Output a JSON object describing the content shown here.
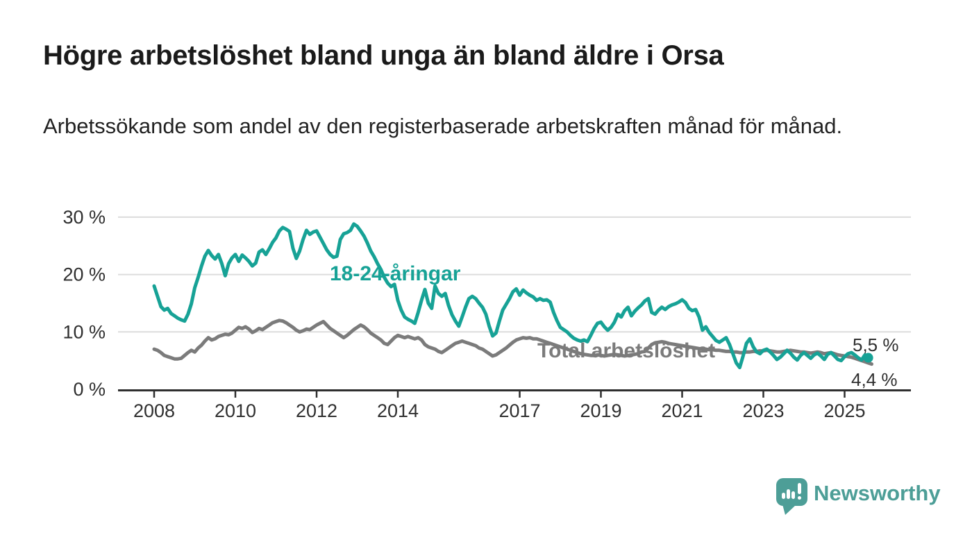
{
  "header": {
    "title": "Högre arbetslöshet bland unga än bland äldre i Orsa",
    "subtitle": "Arbetssökande som andel av den registerbaserade arbetskraften månad för månad."
  },
  "footer": {
    "brand": "Newsworthy",
    "brand_color": "#4d9e97"
  },
  "chart_data": {
    "type": "line",
    "title": "Högre arbetslöshet bland unga än bland äldre i Orsa",
    "subtitle": "Arbetssökande som andel av den registerbaserade arbetskraften månad för månad.",
    "unit": "%",
    "grid": "horizontal",
    "background": "#ffffff",
    "x_range": {
      "start": "2008-01",
      "end": "2025-09",
      "frequency": "monthly"
    },
    "ylim": [
      0,
      30
    ],
    "y_ticks": [
      {
        "value": 0,
        "label": "0 %"
      },
      {
        "value": 10,
        "label": "10 %"
      },
      {
        "value": 20,
        "label": "20 %"
      },
      {
        "value": 30,
        "label": "30 %"
      }
    ],
    "x_ticks": [
      {
        "value": 2008,
        "label": "2008"
      },
      {
        "value": 2010,
        "label": "2010"
      },
      {
        "value": 2012,
        "label": "2012"
      },
      {
        "value": 2014,
        "label": "2014"
      },
      {
        "value": 2017,
        "label": "2017"
      },
      {
        "value": 2019,
        "label": "2019"
      },
      {
        "value": 2021,
        "label": "2021"
      },
      {
        "value": 2023,
        "label": "2023"
      },
      {
        "value": 2025,
        "label": "2025"
      }
    ],
    "series": [
      {
        "name": "18-24-åringar",
        "color": "#17a296",
        "end_label": "5,5 %",
        "last_value": 5.5,
        "end_marker": true,
        "values": [
          18.0,
          16.2,
          14.4,
          13.8,
          14.1,
          13.2,
          12.8,
          12.4,
          12.1,
          11.9,
          13.1,
          14.9,
          17.7,
          19.5,
          21.5,
          23.2,
          24.2,
          23.3,
          22.7,
          23.5,
          21.9,
          19.8,
          21.9,
          22.9,
          23.5,
          22.3,
          23.4,
          22.9,
          22.3,
          21.5,
          22.0,
          23.9,
          24.3,
          23.5,
          24.5,
          25.6,
          26.4,
          27.6,
          28.2,
          27.9,
          27.5,
          24.6,
          22.8,
          24.1,
          26.1,
          27.7,
          27.0,
          27.4,
          27.6,
          26.5,
          25.4,
          24.3,
          23.5,
          23.0,
          23.2,
          26.1,
          27.1,
          27.3,
          27.7,
          28.8,
          28.4,
          27.6,
          26.7,
          25.5,
          24.1,
          23.1,
          21.9,
          20.9,
          19.5,
          18.5,
          17.9,
          18.3,
          15.5,
          13.8,
          12.6,
          12.2,
          11.9,
          11.5,
          13.4,
          15.5,
          17.4,
          15.0,
          14.1,
          18.0,
          16.7,
          16.2,
          16.7,
          14.6,
          13.0,
          11.9,
          11.0,
          12.6,
          14.3,
          15.8,
          16.2,
          15.8,
          15.0,
          14.3,
          13.1,
          11.0,
          9.3,
          9.8,
          11.9,
          13.8,
          14.8,
          15.8,
          17.0,
          17.5,
          16.4,
          17.3,
          16.8,
          16.4,
          16.1,
          15.5,
          15.8,
          15.5,
          15.6,
          15.2,
          13.4,
          12.0,
          10.8,
          10.4,
          10.0,
          9.4,
          8.9,
          8.6,
          8.4,
          8.6,
          8.3,
          9.4,
          10.6,
          11.5,
          11.7,
          10.9,
          10.3,
          10.8,
          11.7,
          13.1,
          12.6,
          13.7,
          14.3,
          12.8,
          13.6,
          14.2,
          14.7,
          15.4,
          15.8,
          13.4,
          13.1,
          13.8,
          14.3,
          13.9,
          14.4,
          14.7,
          14.9,
          15.2,
          15.6,
          15.1,
          14.1,
          13.7,
          13.9,
          12.6,
          10.3,
          10.9,
          9.9,
          9.2,
          8.5,
          8.2,
          8.6,
          9.0,
          7.8,
          6.2,
          4.6,
          3.8,
          5.8,
          8.0,
          8.8,
          7.4,
          6.5,
          6.2,
          6.8,
          7.0,
          6.5,
          5.9,
          5.2,
          5.6,
          6.2,
          6.8,
          6.3,
          5.6,
          5.1,
          5.9,
          6.4,
          5.9,
          5.4,
          6.0,
          6.3,
          5.8,
          5.2,
          6.1,
          6.4,
          5.8,
          5.2,
          5.0,
          5.7,
          6.2,
          6.4,
          6.0,
          5.5,
          5.1,
          6.0,
          5.5
        ]
      },
      {
        "name": "Total arbetslöshet",
        "color": "#7b7b7b",
        "end_label": "4,4 %",
        "last_value": 4.4,
        "end_marker": false,
        "values": [
          7.0,
          6.8,
          6.4,
          5.9,
          5.7,
          5.5,
          5.3,
          5.3,
          5.4,
          5.9,
          6.4,
          6.8,
          6.5,
          7.2,
          7.7,
          8.4,
          9.0,
          8.6,
          8.8,
          9.2,
          9.4,
          9.6,
          9.5,
          9.8,
          10.3,
          10.8,
          10.6,
          10.9,
          10.5,
          9.9,
          10.2,
          10.6,
          10.4,
          10.8,
          11.2,
          11.6,
          11.8,
          12.0,
          11.9,
          11.6,
          11.2,
          10.8,
          10.3,
          10.0,
          10.2,
          10.5,
          10.4,
          10.8,
          11.2,
          11.5,
          11.8,
          11.2,
          10.6,
          10.2,
          9.8,
          9.4,
          9.0,
          9.4,
          9.9,
          10.4,
          10.8,
          11.2,
          10.9,
          10.4,
          9.8,
          9.4,
          9.0,
          8.6,
          8.0,
          7.8,
          8.4,
          9.0,
          9.4,
          9.2,
          9.0,
          9.2,
          9.0,
          8.8,
          9.0,
          8.6,
          7.8,
          7.4,
          7.2,
          7.0,
          6.6,
          6.4,
          6.8,
          7.2,
          7.6,
          8.0,
          8.2,
          8.4,
          8.2,
          8.0,
          7.8,
          7.6,
          7.2,
          7.0,
          6.6,
          6.2,
          5.8,
          6.0,
          6.4,
          6.8,
          7.2,
          7.7,
          8.2,
          8.6,
          8.8,
          9.0,
          8.9,
          9.0,
          8.8,
          8.8,
          8.6,
          8.4,
          8.2,
          8.0,
          7.8,
          7.6,
          7.4,
          7.2,
          7.0,
          6.8,
          6.6,
          6.4,
          6.2,
          6.1,
          6.0,
          5.9,
          5.9,
          6.0,
          5.9,
          5.8,
          5.9,
          6.0,
          6.1,
          6.0,
          5.9,
          5.8,
          5.9,
          6.0,
          6.1,
          6.2,
          6.5,
          6.6,
          7.2,
          7.8,
          8.1,
          8.2,
          8.3,
          8.2,
          8.0,
          7.9,
          7.8,
          7.7,
          7.6,
          7.5,
          7.4,
          7.3,
          7.2,
          7.1,
          7.0,
          7.0,
          6.9,
          6.9,
          6.8,
          6.8,
          6.7,
          6.6,
          6.6,
          6.5,
          6.5,
          6.4,
          6.4,
          6.5,
          6.5,
          6.6,
          6.6,
          6.7,
          6.7,
          6.8,
          6.7,
          6.6,
          6.5,
          6.5,
          6.6,
          6.7,
          6.8,
          6.7,
          6.6,
          6.5,
          6.5,
          6.4,
          6.3,
          6.4,
          6.5,
          6.4,
          6.2,
          6.3,
          6.4,
          6.2,
          6.0,
          5.9,
          5.8,
          5.7,
          5.6,
          5.4,
          5.2,
          5.0,
          4.8,
          4.6,
          4.4
        ]
      }
    ]
  }
}
